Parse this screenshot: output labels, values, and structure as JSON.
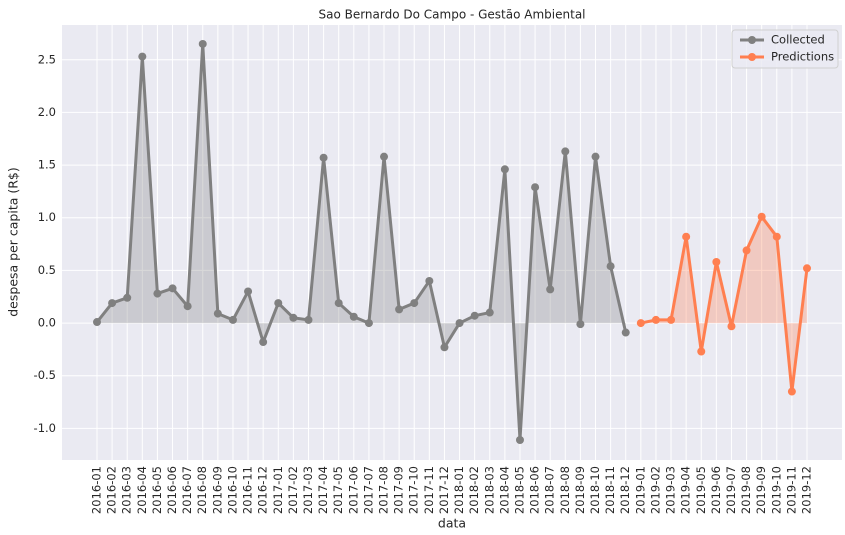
{
  "chart_data": {
    "type": "line",
    "title": "Sao Bernardo Do Campo - Gestão Ambiental",
    "xlabel": "data",
    "ylabel": "despesa per capita (R$)",
    "categories": [
      "2016-01",
      "2016-02",
      "2016-03",
      "2016-04",
      "2016-05",
      "2016-06",
      "2016-07",
      "2016-08",
      "2016-09",
      "2016-10",
      "2016-11",
      "2016-12",
      "2017-01",
      "2017-02",
      "2017-03",
      "2017-04",
      "2017-05",
      "2017-06",
      "2017-07",
      "2017-08",
      "2017-09",
      "2017-10",
      "2017-11",
      "2017-12",
      "2018-01",
      "2018-02",
      "2018-03",
      "2018-04",
      "2018-05",
      "2018-06",
      "2018-07",
      "2018-08",
      "2018-09",
      "2018-10",
      "2018-11",
      "2018-12",
      "2019-01",
      "2019-02",
      "2019-03",
      "2019-04",
      "2019-05",
      "2019-06",
      "2019-07",
      "2019-08",
      "2019-09",
      "2019-10",
      "2019-11",
      "2019-12"
    ],
    "series": [
      {
        "name": "Collected",
        "color": "#808080",
        "values": [
          0.01,
          0.19,
          0.24,
          2.53,
          0.28,
          0.33,
          0.16,
          2.65,
          0.09,
          0.03,
          0.3,
          -0.18,
          0.19,
          0.05,
          0.03,
          1.57,
          0.19,
          0.06,
          0.0,
          1.58,
          0.13,
          0.19,
          0.4,
          -0.23,
          0.0,
          0.07,
          0.1,
          1.46,
          -1.11,
          1.29,
          0.32,
          1.63,
          -0.01,
          1.58,
          0.54,
          -0.09,
          null,
          null,
          null,
          null,
          null,
          null,
          null,
          null,
          null,
          null,
          null,
          null
        ]
      },
      {
        "name": "Predictions",
        "color": "#ff7f50",
        "values": [
          null,
          null,
          null,
          null,
          null,
          null,
          null,
          null,
          null,
          null,
          null,
          null,
          null,
          null,
          null,
          null,
          null,
          null,
          null,
          null,
          null,
          null,
          null,
          null,
          null,
          null,
          null,
          null,
          null,
          null,
          null,
          null,
          null,
          null,
          null,
          null,
          0.0,
          0.03,
          0.03,
          0.82,
          -0.27,
          0.58,
          -0.03,
          0.69,
          1.01,
          0.82,
          -0.65,
          0.52
        ]
      }
    ],
    "ylim": [
      -1.3,
      2.83
    ],
    "yticks": [
      {
        "value": -1,
        "label": "-1.0"
      },
      -0.5,
      {
        "value": 0,
        "label": "0.0"
      },
      0.5,
      {
        "value": 1,
        "label": "1.0"
      },
      1.5,
      {
        "value": 2,
        "label": "2.0"
      },
      2.5
    ],
    "grid": true,
    "legend": "upper right"
  }
}
